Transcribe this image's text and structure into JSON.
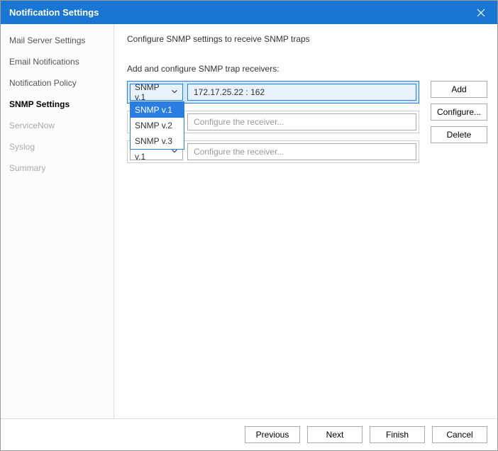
{
  "window": {
    "title": "Notification Settings"
  },
  "sidebar": {
    "items": [
      {
        "label": "Mail Server Settings",
        "state": "normal"
      },
      {
        "label": "Email Notifications",
        "state": "normal"
      },
      {
        "label": "Notification Policy",
        "state": "normal"
      },
      {
        "label": "SNMP Settings",
        "state": "active"
      },
      {
        "label": "ServiceNow",
        "state": "disabled"
      },
      {
        "label": "Syslog",
        "state": "disabled"
      },
      {
        "label": "Summary",
        "state": "disabled"
      }
    ]
  },
  "main": {
    "heading": "Configure SNMP settings to receive SNMP traps",
    "subheading": "Add and configure SNMP trap receivers:",
    "rows": [
      {
        "version": "SNMP v.1",
        "receiver": "172.17.25.22 : 162",
        "placeholder": false,
        "selected": true,
        "dropdownOpen": true
      },
      {
        "version": "SNMP v.1",
        "receiver": "Configure the receiver...",
        "placeholder": true,
        "selected": false,
        "dropdownOpen": false
      },
      {
        "version": "SNMP v.1",
        "receiver": "Configure the receiver...",
        "placeholder": true,
        "selected": false,
        "dropdownOpen": false
      }
    ],
    "dropdown": {
      "options": [
        "SNMP v.1",
        "SNMP v.2",
        "SNMP v.3"
      ],
      "highlighted": "SNMP v.1"
    },
    "actions": {
      "add": "Add",
      "configure": "Configure...",
      "delete": "Delete"
    }
  },
  "footer": {
    "previous": "Previous",
    "next": "Next",
    "finish": "Finish",
    "cancel": "Cancel"
  },
  "colors": {
    "titlebar": "#1976d2",
    "selection_bg": "#cfe8ff",
    "selection_border": "#2a7de1",
    "dropdown_highlight": "#2a7de1"
  }
}
